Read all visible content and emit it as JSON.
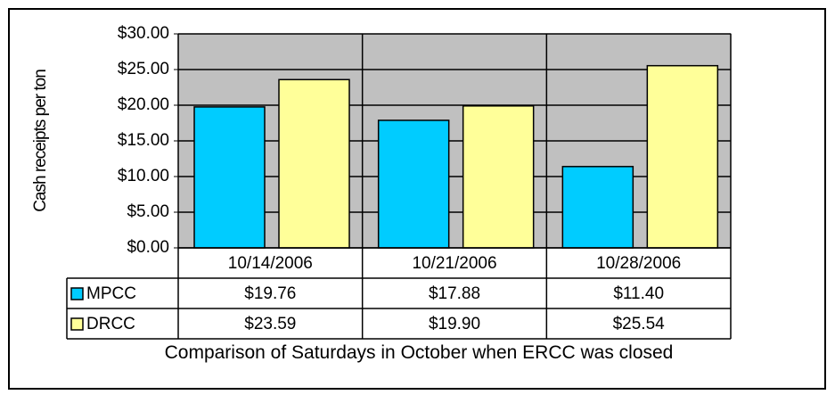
{
  "chart_data": {
    "type": "bar",
    "y_label": "Cash receipts per ton",
    "x_label": "Comparison of Saturdays in October when ERCC was closed",
    "categories": [
      "10/14/2006",
      "10/21/2006",
      "10/28/2006"
    ],
    "series": [
      {
        "name": "MPCC",
        "color": "#00ccff",
        "values": [
          19.76,
          17.88,
          11.4
        ],
        "value_labels": [
          "$19.76",
          "$17.88",
          "$11.40"
        ]
      },
      {
        "name": "DRCC",
        "color": "#ffff99",
        "values": [
          23.59,
          19.9,
          25.54
        ],
        "value_labels": [
          "$23.59",
          "$19.90",
          "$25.54"
        ]
      }
    ],
    "ylim": [
      0,
      30
    ],
    "yticks": [
      {
        "value": 0,
        "label": "$0.00"
      },
      {
        "value": 5,
        "label": "$5.00"
      },
      {
        "value": 10,
        "label": "$10.00"
      },
      {
        "value": 15,
        "label": "$15.00"
      },
      {
        "value": 20,
        "label": "$20.00"
      },
      {
        "value": 25,
        "label": "$25.00"
      },
      {
        "value": 30,
        "label": "$30.00"
      }
    ],
    "grid": true,
    "plot_background": "#c0c0c0"
  }
}
